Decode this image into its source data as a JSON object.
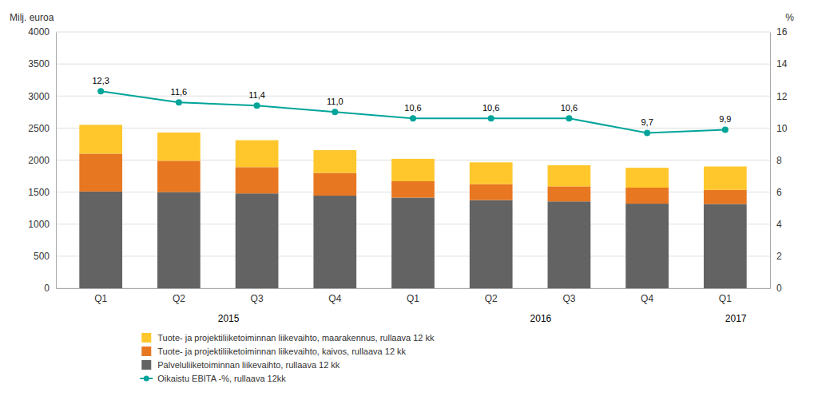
{
  "chart_data": {
    "type": "bar",
    "stacked": true,
    "categories": [
      "Q1",
      "Q2",
      "Q3",
      "Q4",
      "Q1",
      "Q2",
      "Q3",
      "Q4",
      "Q1"
    ],
    "ylabel": "Milj. euroa",
    "y2label": "%",
    "series": [
      {
        "name": "Palveluliiketoiminnan liikevaihto, rullaava 12 kk",
        "color": "#636363",
        "values": [
          1510,
          1500,
          1480,
          1445,
          1415,
          1375,
          1355,
          1320,
          1315
        ]
      },
      {
        "name": "Tuote- ja projektiliiketoiminnan liikevaihto, kaivos, rullaava 12 kk",
        "color": "#E87722",
        "values": [
          590,
          490,
          410,
          355,
          255,
          250,
          235,
          250,
          220
        ]
      },
      {
        "name": "Tuote- ja projektiliiketoiminnan liikevaihto, maarakennus, rullaava 12 kk",
        "color": "#FFC72C",
        "values": [
          450,
          440,
          420,
          355,
          350,
          340,
          330,
          310,
          365
        ]
      },
      {
        "name": "Oikaistu EBITA -%, rullaava 12kk",
        "type": "line",
        "axis": "y2",
        "color": "#00A499",
        "marker": "circle",
        "data_labels": true,
        "values": [
          12.3,
          11.6,
          11.4,
          11.0,
          10.6,
          10.6,
          10.6,
          9.7,
          9.9
        ],
        "value_labels": [
          "12,3",
          "11,6",
          "11,4",
          "11,0",
          "10,6",
          "10,6",
          "10,6",
          "9,7",
          "9,9"
        ]
      }
    ],
    "ylim": [
      0,
      4000
    ],
    "yticks": [
      0,
      500,
      1000,
      1500,
      2000,
      2500,
      3000,
      3500,
      4000
    ],
    "y2lim": [
      0,
      16
    ],
    "y2ticks": [
      0,
      2,
      4,
      6,
      8,
      10,
      12,
      14,
      16
    ],
    "grid": true,
    "legend": "bottom",
    "annotations": [
      {
        "text": "2015",
        "x": 1.5
      },
      {
        "text": "2016",
        "x": 5.5
      },
      {
        "text": "2017",
        "x": 8
      }
    ]
  }
}
